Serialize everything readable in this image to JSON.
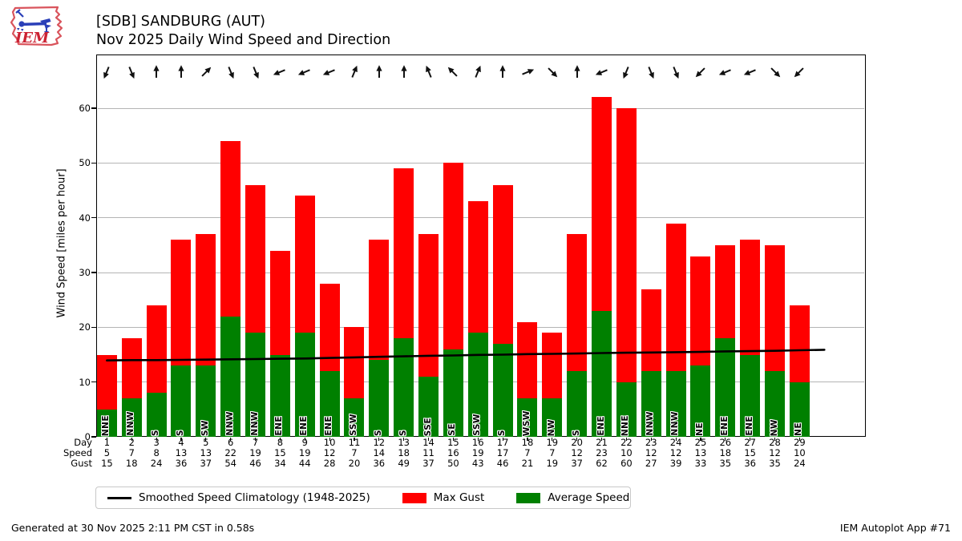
{
  "logo": {
    "label": "IEM"
  },
  "header": {
    "title_line1": "[SDB] SANDBURG (AUT)",
    "title_line2": "Nov 2025 Daily Wind Speed and Direction"
  },
  "chart_data": {
    "type": "bar",
    "title": "[SDB] SANDBURG (AUT) — Nov 2025 Daily Wind Speed and Direction",
    "xlabel": "Day",
    "ylabel": "Wind Speed [miles per hour]",
    "ylim": [
      0,
      69.8
    ],
    "yticks": [
      0,
      10,
      20,
      30,
      40,
      50,
      60
    ],
    "grid": "horizontal",
    "legend_position": "bottom",
    "categories": [
      1,
      2,
      3,
      4,
      5,
      6,
      7,
      8,
      9,
      10,
      11,
      12,
      13,
      14,
      15,
      16,
      17,
      18,
      19,
      20,
      21,
      22,
      23,
      24,
      25,
      26,
      27,
      28,
      29
    ],
    "axis_rows": {
      "day": "Day",
      "speed": "Speed",
      "gust": "Gust"
    },
    "wind_directions": [
      "NNE",
      "NNW",
      "S",
      "S",
      "SW",
      "NNW",
      "NNW",
      "ENE",
      "ENE",
      "ENE",
      "SSW",
      "S",
      "S",
      "SSE",
      "SE",
      "SSW",
      "S",
      "WSW",
      "NW",
      "S",
      "ENE",
      "NNE",
      "NNW",
      "NNW",
      "NE",
      "ENE",
      "ENE",
      "NW",
      "NE"
    ],
    "series": [
      {
        "name": "Max Gust",
        "color": "#ff0000",
        "values": [
          15,
          18,
          24,
          36,
          37,
          54,
          46,
          34,
          44,
          28,
          20,
          36,
          49,
          37,
          50,
          43,
          46,
          21,
          19,
          37,
          62,
          60,
          27,
          39,
          33,
          35,
          36,
          35,
          24
        ]
      },
      {
        "name": "Average Speed",
        "color": "#008000",
        "values": [
          5,
          7,
          8,
          13,
          13,
          22,
          19,
          15,
          19,
          12,
          7,
          14,
          18,
          11,
          16,
          19,
          17,
          7,
          7,
          12,
          23,
          10,
          12,
          12,
          13,
          18,
          15,
          12,
          10
        ]
      }
    ],
    "climatology_line": {
      "name": "Smoothed Speed Climatology (1948-2025)",
      "color": "#000000",
      "x": [
        1,
        2,
        3,
        4,
        5,
        6,
        7,
        8,
        9,
        10,
        11,
        12,
        13,
        14,
        15,
        16,
        17,
        18,
        19,
        20,
        21,
        22,
        23,
        24,
        25,
        26,
        27,
        28,
        29,
        30
      ],
      "values": [
        13.95,
        14.0,
        14.0,
        14.05,
        14.1,
        14.15,
        14.2,
        14.25,
        14.3,
        14.4,
        14.5,
        14.6,
        14.7,
        14.8,
        14.85,
        14.95,
        15.0,
        15.1,
        15.15,
        15.2,
        15.3,
        15.35,
        15.4,
        15.45,
        15.5,
        15.6,
        15.65,
        15.7,
        15.8,
        15.9
      ]
    }
  },
  "legend": {
    "items": [
      {
        "label": "Smoothed Speed Climatology (1948-2025)",
        "swatch": "line",
        "color": "#000000"
      },
      {
        "label": "Max Gust",
        "swatch": "rect",
        "color": "#ff0000"
      },
      {
        "label": "Average Speed",
        "swatch": "rect",
        "color": "#008000"
      }
    ]
  },
  "footer": {
    "left": "Generated at 30 Nov 2025 2:11 PM CST in 0.58s",
    "right": "IEM Autoplot App #71"
  }
}
